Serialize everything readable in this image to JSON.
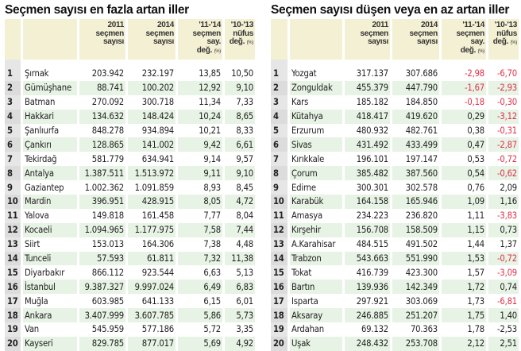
{
  "left": {
    "title": "Seçmen sayısı en fazla artan iller",
    "headers": {
      "c1": [
        "2011",
        "seçmen",
        "sayısı"
      ],
      "c2": [
        "2014",
        "seçmen",
        "sayısı"
      ],
      "c3": [
        "'11-'14",
        "seçmen say.",
        "değ."
      ],
      "c4": [
        "'10-'13",
        "nüfus",
        "değ."
      ],
      "unit": "(%)"
    },
    "rows": [
      [
        "1",
        "Şırnak",
        "203.942",
        "232.197",
        "13,85",
        "10,50"
      ],
      [
        "2",
        "Gümüşhane",
        "88.741",
        "100.202",
        "12,92",
        "9,10"
      ],
      [
        "3",
        "Batman",
        "270.092",
        "300.718",
        "11,34",
        "7,33"
      ],
      [
        "4",
        "Hakkari",
        "134.632",
        "148.424",
        "10,24",
        "8,65"
      ],
      [
        "5",
        "Şanlıurfa",
        "848.278",
        "934.894",
        "10,21",
        "8,33"
      ],
      [
        "6",
        "Çankırı",
        "128.865",
        "141.002",
        "9,42",
        "6,61"
      ],
      [
        "7",
        "Tekirdağ",
        "581.779",
        "634.941",
        "9,14",
        "9,57"
      ],
      [
        "8",
        "Antalya",
        "1.387.511",
        "1.513.972",
        "9,11",
        "9,10"
      ],
      [
        "9",
        "Gaziantep",
        "1.002.362",
        "1.091.859",
        "8,93",
        "8,45"
      ],
      [
        "10",
        "Mardin",
        "396.951",
        "428.915",
        "8,05",
        "4,72"
      ],
      [
        "11",
        "Yalova",
        "149.818",
        "161.458",
        "7,77",
        "8,04"
      ],
      [
        "12",
        "Kocaeli",
        "1.094.965",
        "1.177.975",
        "7,58",
        "7,44"
      ],
      [
        "13",
        "Siirt",
        "153.013",
        "164.306",
        "7,38",
        "4,48"
      ],
      [
        "14",
        "Tunceli",
        "57.593",
        "61.811",
        "7,32",
        "11,38"
      ],
      [
        "15",
        "Diyarbakır",
        "866.112",
        "923.544",
        "6,63",
        "5,13"
      ],
      [
        "16",
        "İstanbul",
        "9.387.327",
        "9.997.024",
        "6,49",
        "6,83"
      ],
      [
        "17",
        "Muğla",
        "603.985",
        "641.133",
        "6,15",
        "6,01"
      ],
      [
        "18",
        "Ankara",
        "3.407.999",
        "3.607.785",
        "5,86",
        "5,73"
      ],
      [
        "19",
        "Van",
        "545.959",
        "577.186",
        "5,72",
        "3,35"
      ],
      [
        "20",
        "Kayseri",
        "829.785",
        "877.017",
        "5,69",
        "4,92"
      ]
    ]
  },
  "right": {
    "title": "Seçmen sayısı düşen veya en az artan iller",
    "headers": {
      "c1": [
        "2011",
        "seçmen",
        "sayısı"
      ],
      "c2": [
        "2014",
        "seçmen",
        "sayısı"
      ],
      "c3": [
        "'11-'14",
        "seçmen say.",
        "değ."
      ],
      "c4": [
        "'10-'13",
        "nüfus",
        "değ."
      ],
      "unit": "(%)"
    },
    "rows": [
      [
        "1",
        "Yozgat",
        "317.137",
        "307.686",
        "-2,98",
        "-6,70"
      ],
      [
        "2",
        "Zonguldak",
        "455.379",
        "447.790",
        "-1,67",
        "-2,93"
      ],
      [
        "3",
        "Kars",
        "185.182",
        "184.850",
        "-0,18",
        "-0,30"
      ],
      [
        "4",
        "Kütahya",
        "418.417",
        "419.620",
        "0,29",
        "-3,12"
      ],
      [
        "5",
        "Erzurum",
        "480.932",
        "482.761",
        "0,38",
        "-0,31"
      ],
      [
        "6",
        "Sivas",
        "431.492",
        "433.499",
        "0,47",
        "-2,87"
      ],
      [
        "7",
        "Kırıkkale",
        "196.101",
        "197.147",
        "0,53",
        "-0,72"
      ],
      [
        "8",
        "Çorum",
        "385.482",
        "387.560",
        "0,54",
        "-0,62"
      ],
      [
        "9",
        "Edirne",
        "300.301",
        "302.578",
        "0,76",
        "2,09"
      ],
      [
        "10",
        "Karabük",
        "164.158",
        "165.946",
        "1,09",
        "1,16"
      ],
      [
        "11",
        "Amasya",
        "234.223",
        "236.820",
        "1,11",
        "-3,83"
      ],
      [
        "12",
        "Kırşehir",
        "156.708",
        "158.509",
        "1,15",
        "0,73"
      ],
      [
        "13",
        "A.Karahisar",
        "484.515",
        "491.502",
        "1,44",
        "1,37"
      ],
      [
        "14",
        "Trabzon",
        "543.663",
        "551.990",
        "1,53",
        "-0,72"
      ],
      [
        "15",
        "Tokat",
        "416.739",
        "423.300",
        "1,57",
        "-3,09"
      ],
      [
        "16",
        "Bartın",
        "139.936",
        "142.349",
        "1,72",
        "0,74"
      ],
      [
        "17",
        "Isparta",
        "297.921",
        "303.069",
        "1,73",
        "-6,81"
      ],
      [
        "18",
        "Aksaray",
        "246.885",
        "251.207",
        "1,75",
        "1,40"
      ],
      [
        "19",
        "Ardahan",
        "69.132",
        "70.363",
        "1,78",
        "-2,53"
      ],
      [
        "20",
        "Uşak",
        "248.432",
        "253.708",
        "2,12",
        "2,51"
      ]
    ]
  },
  "colors": {
    "header_bg": "#f4f0d4",
    "row_alt_bg": "#e7f3e4",
    "rank_bg": "#e6e6e6",
    "negative": "#e0304a"
  }
}
